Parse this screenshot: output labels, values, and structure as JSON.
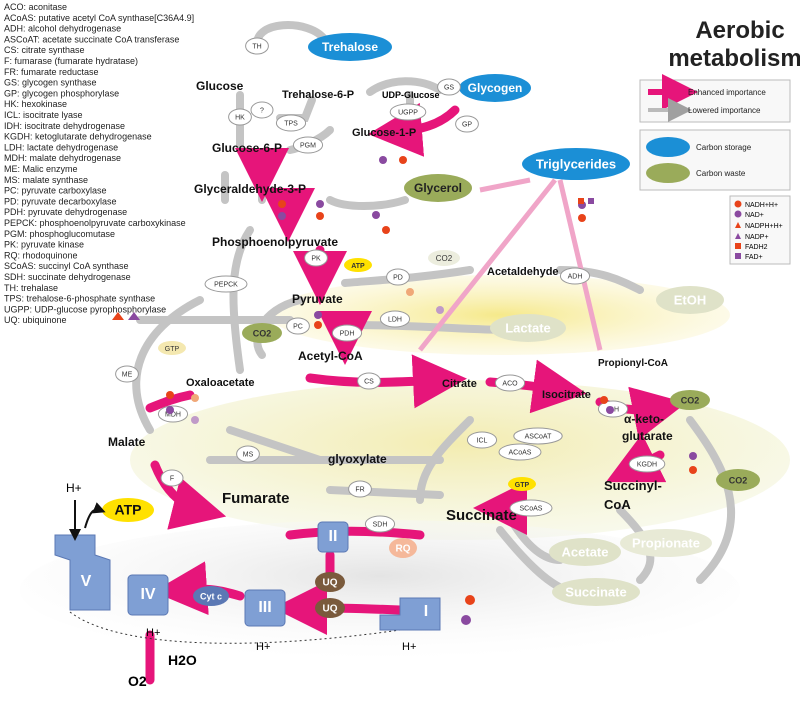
{
  "title_line1": "Aerobic",
  "title_line2": "metabolism",
  "abbreviations": [
    "ACO: aconitase",
    "ACoAS: putative acetyl CoA synthase[C36A4.9]",
    "ADH: alcohol dehydrogenase",
    "ASCoAT: acetate succinate CoA transferase",
    "CS: citrate synthase",
    "F: fumarase (fumarate hydratase)",
    "FR: fumarate reductase",
    "GS: glycogen synthase",
    "GP: glycogen phosphorylase",
    "HK: hexokinase",
    "ICL: isocitrate lyase",
    "IDH: isocitrate dehydrogenase",
    "KGDH: ketoglutarate dehydrogenase",
    "LDH: lactate dehydrogenase",
    "MDH: malate dehydrogenase",
    "ME: Malic enzyme",
    "MS: malate synthase",
    "PC: pyruvate carboxylase",
    "PD: pyruvate decarboxylase",
    "PDH: pyruvate dehydrogenase",
    "PEPCK: phosphoenolpyruvate carboxykinase",
    "PGM: phosphoglucomutase",
    "PK: pyruvate kinase",
    "RQ: rhodoquinone",
    "SCoAS: succinyl CoA synthase",
    "SDH: succinate dehydrogenase",
    "TH: trehalase",
    "TPS: trehalose-6-phosphate synthase",
    "UGPP: UDP-glucose pyrophosphorylase",
    "UQ: ubiquinone"
  ],
  "legend": {
    "enhanced": "Enhanced importance",
    "lowered": "Lowered importance",
    "storage": "Carbon storage",
    "waste": "Carbon waste"
  },
  "cofactors": [
    "NADH+H+",
    "NAD+",
    "NADPH+H+",
    "NADP+",
    "FADH2",
    "FAD+"
  ],
  "metabolites": {
    "glucose": "Glucose",
    "trehalose6p": "Trehalose-6-P",
    "udpglucose": "UDP-Glucose",
    "glucose1p": "Glucose-1-P",
    "glucose6p": "Glucose-6-P",
    "g3p": "Glyceraldehyde-3-P",
    "pep": "Phosphoenolpyruvate",
    "pyruvate": "Pyruvate",
    "acetaldehyde": "Acetaldehyde",
    "acetylcoa": "Acetyl-CoA",
    "oxaloacetate": "Oxaloacetate",
    "citrate": "Citrate",
    "isocitrate": "Isocitrate",
    "akg1": "α-keto-",
    "akg2": "glutarate",
    "malate": "Malate",
    "glyoxylate": "glyoxylate",
    "fumarate": "Fumarate",
    "succinate": "Succinate",
    "succinylcoa1": "Succinyl-",
    "succinylcoa2": "CoA",
    "propionylcoa": "Propionyl-CoA"
  },
  "storage": {
    "trehalose": "Trehalose",
    "glycogen": "Glycogen",
    "triglycerides": "Triglycerides"
  },
  "waste": {
    "glycerol": "Glycerol",
    "etoh": "EtOH",
    "lactate": "Lactate",
    "acetate": "Acetate",
    "propionate": "Propionate",
    "succinate_out": "Succinate"
  },
  "enzymes": {
    "th": "TH",
    "hk": "HK",
    "q": "?",
    "tps": "TPS",
    "ugpp": "UGPP",
    "gs": "GS",
    "gp": "GP",
    "pgm": "PGM",
    "pepck": "PEPCK",
    "pk": "PK",
    "pd": "PD",
    "adh": "ADH",
    "ldh": "LDH",
    "pc": "PC",
    "pdh": "PDH",
    "me": "ME",
    "mdh": "MDH",
    "cs": "CS",
    "aco": "ACO",
    "idh": "IDH",
    "kgdh": "KGDH",
    "icl": "ICL",
    "ascoat": "ASCoAT",
    "acoas": "ACoAS",
    "ms": "MS",
    "f": "F",
    "fr": "FR",
    "scoas": "SCoAS",
    "sdh": "SDH"
  },
  "misc": {
    "atp1": "ATP",
    "atp_big": "ATP",
    "gtp1": "GTP",
    "gtp2": "GTP",
    "co2_1": "CO2",
    "co2_2": "CO2",
    "co2_3": "CO2",
    "co2_4": "CO2",
    "uq1": "UQ",
    "uq2": "UQ",
    "rq": "RQ",
    "cytc": "Cyt c",
    "h1": "H+",
    "h2": "H+",
    "h3": "H+",
    "h4": "H+",
    "h5": "H+",
    "h2o": "H2O",
    "o2": "O2"
  },
  "complexes": {
    "c1": "I",
    "c2": "II",
    "c3": "III",
    "c4": "IV",
    "c5": "V"
  },
  "colors": {
    "enhanced": "#e6157a",
    "lowered": "#9a9a9a",
    "storage": "#1b8fd6",
    "waste": "#9aab5a",
    "complex": "#7f9fd4",
    "uq": "#7a5a3c"
  }
}
